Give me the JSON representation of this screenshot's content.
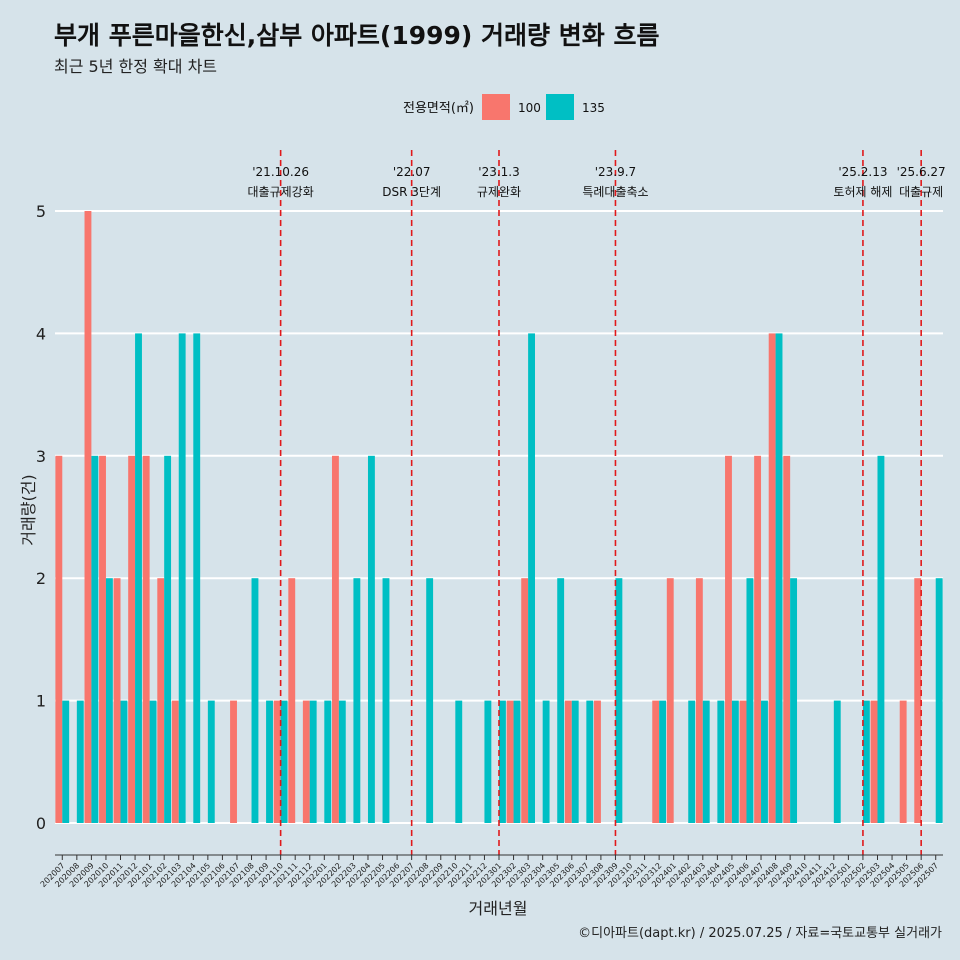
{
  "title": "부개 푸른마을한신,삼부 아파트(1999) 거래량 변화 흐름",
  "subtitle": "최근 5년 한정 확대 차트",
  "caption": "©디아파트(dapt.kr) / 2025.07.25 / 자료=국토교통부 실거래가",
  "colors": {
    "background": "#d6e3ea",
    "s100": "#f8766d",
    "s135": "#00bfc4",
    "event": "#e0191b"
  },
  "chart_data": {
    "type": "bar",
    "title": "부개 푸른마을한신,삼부 아파트(1999) 거래량 변화 흐름",
    "xlabel": "거래년월",
    "ylabel": "거래량(건)",
    "ylim": [
      0,
      5
    ],
    "yticks": [
      0,
      1,
      2,
      3,
      4,
      5
    ],
    "legend": {
      "title": "전용면적(㎡)",
      "position": "top",
      "entries": [
        "100",
        "135"
      ]
    },
    "categories": [
      "202007",
      "202008",
      "202009",
      "202010",
      "202011",
      "202012",
      "202101",
      "202102",
      "202103",
      "202104",
      "202105",
      "202106",
      "202107",
      "202108",
      "202109",
      "202110",
      "202111",
      "202112",
      "202201",
      "202202",
      "202203",
      "202204",
      "202205",
      "202206",
      "202207",
      "202208",
      "202209",
      "202210",
      "202211",
      "202212",
      "202301",
      "202302",
      "202303",
      "202304",
      "202305",
      "202306",
      "202307",
      "202308",
      "202309",
      "202310",
      "202311",
      "202312",
      "202401",
      "202402",
      "202403",
      "202404",
      "202405",
      "202406",
      "202407",
      "202408",
      "202409",
      "202410",
      "202411",
      "202412",
      "202501",
      "202502",
      "202503",
      "202504",
      "202505",
      "202506",
      "202507"
    ],
    "series": [
      {
        "name": "100",
        "values": [
          3,
          0,
          5,
          3,
          2,
          3,
          3,
          2,
          1,
          0,
          0,
          0,
          1,
          0,
          0,
          1,
          2,
          1,
          0,
          3,
          0,
          0,
          0,
          0,
          0,
          0,
          0,
          0,
          0,
          0,
          0,
          1,
          2,
          0,
          0,
          1,
          0,
          1,
          0,
          0,
          0,
          1,
          2,
          0,
          2,
          0,
          3,
          1,
          3,
          4,
          3,
          0,
          0,
          0,
          0,
          0,
          1,
          0,
          1,
          2,
          0
        ]
      },
      {
        "name": "135",
        "values": [
          1,
          1,
          3,
          2,
          1,
          4,
          1,
          3,
          4,
          4,
          1,
          0,
          0,
          2,
          1,
          1,
          0,
          1,
          1,
          1,
          2,
          3,
          2,
          0,
          0,
          2,
          0,
          1,
          0,
          1,
          1,
          1,
          4,
          1,
          2,
          1,
          1,
          0,
          2,
          0,
          0,
          1,
          0,
          1,
          1,
          1,
          1,
          2,
          1,
          4,
          2,
          0,
          0,
          1,
          0,
          1,
          3,
          0,
          0,
          0,
          2
        ]
      }
    ],
    "events": [
      {
        "date": "'21.10.26",
        "label": "대출규제강화",
        "month": "202110"
      },
      {
        "date": "'22.07",
        "label": "DSR 3단계",
        "month": "202207"
      },
      {
        "date": "'23.1.3",
        "label": "규제완화",
        "month": "202301"
      },
      {
        "date": "'23.9.7",
        "label": "특례대출축소",
        "month": "202309"
      },
      {
        "date": "'25.2.13",
        "label": "토허제 해제",
        "month": "202502"
      },
      {
        "date": "'25.6.27",
        "label": "대출규제",
        "month": "202506"
      }
    ]
  }
}
